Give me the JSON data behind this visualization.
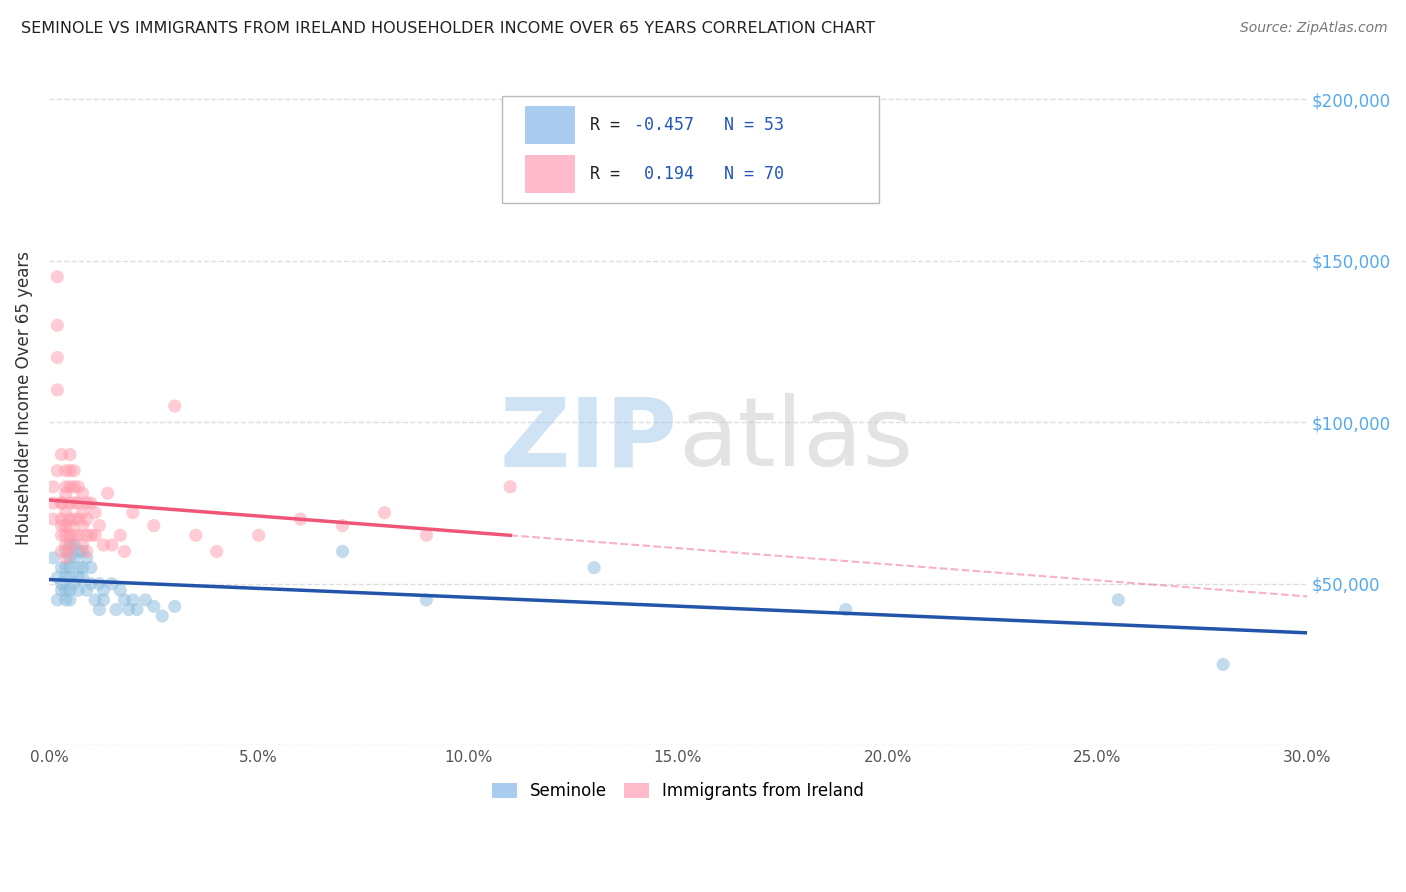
{
  "title": "SEMINOLE VS IMMIGRANTS FROM IRELAND HOUSEHOLDER INCOME OVER 65 YEARS CORRELATION CHART",
  "source": "Source: ZipAtlas.com",
  "ylabel": "Householder Income Over 65 years",
  "yticks": [
    0,
    50000,
    100000,
    150000,
    200000
  ],
  "xmin": 0.0,
  "xmax": 0.3,
  "ymin": 0,
  "ymax": 215000,
  "seminole_R": -0.457,
  "seminole_N": 53,
  "ireland_R": 0.194,
  "ireland_N": 70,
  "seminole_color": "#88BBDD",
  "ireland_color": "#FF99AA",
  "seminole_line_color": "#2255AA",
  "ireland_line_color": "#EE5577",
  "watermark_zip_color": "#AACCEE",
  "watermark_atlas_color": "#CCCCCC",
  "background_color": "#FFFFFF",
  "grid_color": "#DDDDDD",
  "legend_patch_blue": "#AACCEE",
  "legend_patch_pink": "#FFBBCC",
  "legend_text_color": "#2255BB",
  "legend_label_color": "#333333",
  "seminole_x": [
    0.001,
    0.002,
    0.002,
    0.003,
    0.003,
    0.003,
    0.004,
    0.004,
    0.004,
    0.004,
    0.004,
    0.005,
    0.005,
    0.005,
    0.005,
    0.005,
    0.005,
    0.006,
    0.006,
    0.006,
    0.007,
    0.007,
    0.007,
    0.007,
    0.008,
    0.008,
    0.008,
    0.009,
    0.009,
    0.01,
    0.01,
    0.011,
    0.012,
    0.012,
    0.013,
    0.013,
    0.015,
    0.016,
    0.017,
    0.018,
    0.019,
    0.02,
    0.021,
    0.023,
    0.025,
    0.027,
    0.03,
    0.07,
    0.09,
    0.13,
    0.19,
    0.255,
    0.28
  ],
  "seminole_y": [
    58000,
    45000,
    52000,
    50000,
    48000,
    55000,
    55000,
    60000,
    52000,
    48000,
    45000,
    62000,
    58000,
    55000,
    52000,
    48000,
    45000,
    62000,
    58000,
    50000,
    60000,
    55000,
    52000,
    48000,
    60000,
    55000,
    52000,
    58000,
    48000,
    55000,
    50000,
    45000,
    50000,
    42000,
    48000,
    45000,
    50000,
    42000,
    48000,
    45000,
    42000,
    45000,
    42000,
    45000,
    43000,
    40000,
    43000,
    60000,
    45000,
    55000,
    42000,
    45000,
    25000
  ],
  "ireland_x": [
    0.001,
    0.001,
    0.001,
    0.002,
    0.002,
    0.002,
    0.002,
    0.002,
    0.003,
    0.003,
    0.003,
    0.003,
    0.003,
    0.003,
    0.003,
    0.004,
    0.004,
    0.004,
    0.004,
    0.004,
    0.004,
    0.004,
    0.004,
    0.005,
    0.005,
    0.005,
    0.005,
    0.005,
    0.005,
    0.005,
    0.005,
    0.005,
    0.006,
    0.006,
    0.006,
    0.006,
    0.006,
    0.007,
    0.007,
    0.007,
    0.007,
    0.008,
    0.008,
    0.008,
    0.008,
    0.009,
    0.009,
    0.009,
    0.009,
    0.01,
    0.01,
    0.011,
    0.011,
    0.012,
    0.013,
    0.014,
    0.015,
    0.017,
    0.018,
    0.02,
    0.025,
    0.03,
    0.035,
    0.04,
    0.05,
    0.06,
    0.07,
    0.08,
    0.09,
    0.11
  ],
  "ireland_y": [
    75000,
    80000,
    70000,
    130000,
    145000,
    120000,
    110000,
    85000,
    75000,
    90000,
    75000,
    70000,
    68000,
    65000,
    60000,
    80000,
    85000,
    78000,
    72000,
    68000,
    65000,
    62000,
    58000,
    90000,
    85000,
    80000,
    75000,
    70000,
    68000,
    65000,
    62000,
    60000,
    85000,
    80000,
    75000,
    70000,
    65000,
    80000,
    75000,
    70000,
    65000,
    78000,
    72000,
    68000,
    62000,
    75000,
    70000,
    65000,
    60000,
    75000,
    65000,
    72000,
    65000,
    68000,
    62000,
    78000,
    62000,
    65000,
    60000,
    72000,
    68000,
    105000,
    65000,
    60000,
    65000,
    70000,
    68000,
    72000,
    65000,
    80000
  ]
}
